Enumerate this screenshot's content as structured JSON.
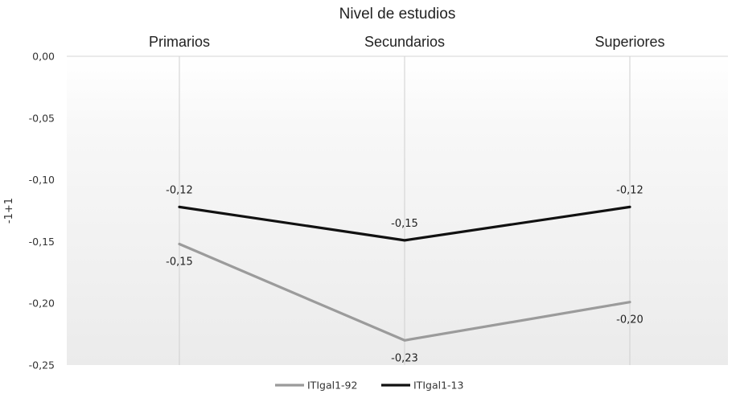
{
  "chart_data": {
    "type": "line",
    "title": "Nivel de estudios",
    "categories": [
      "Primarios",
      "Secundarios",
      "Superiores"
    ],
    "ylabel": "-1+1",
    "ylim": [
      -0.25,
      0.0
    ],
    "yticks": [
      0.0,
      -0.05,
      -0.1,
      -0.15,
      -0.2,
      -0.25
    ],
    "ytick_labels": [
      "0,00",
      "-0,05",
      "-0,10",
      "-0,15",
      "-0,20",
      "-0,25"
    ],
    "x_axis_position": "top",
    "grid": "vertical lines at categories",
    "legend_position": "bottom",
    "series": [
      {
        "name": "ITIgal1-92",
        "color": "#9b9b9b",
        "values": [
          -0.152,
          -0.23,
          -0.199
        ],
        "labels": [
          "-0,15",
          "-0,23",
          "-0,20"
        ],
        "label_position": "below"
      },
      {
        "name": "ITIgal1-13",
        "color": "#111111",
        "values": [
          -0.122,
          -0.149,
          -0.122
        ],
        "labels": [
          "-0,12",
          "-0,15",
          "-0,12"
        ],
        "label_position": "above"
      }
    ]
  }
}
